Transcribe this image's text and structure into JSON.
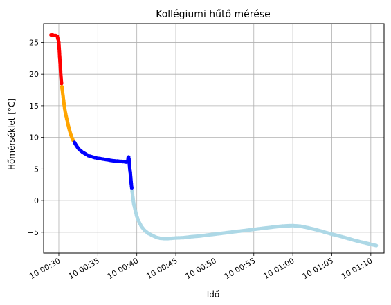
{
  "chart_data": {
    "type": "scatter",
    "title": "Kollégiumi hűtő mérése",
    "xlabel": "Idő",
    "ylabel": "Hőmérséklet [°C]",
    "x_unit": "minute after 00:00",
    "xlim": [
      28.05,
      71.7
    ],
    "ylim": [
      -8.3,
      28.0
    ],
    "x_ticks": [
      {
        "value": 30,
        "label": "10 00:30"
      },
      {
        "value": 35,
        "label": "10 00:35"
      },
      {
        "value": 40,
        "label": "10 00:40"
      },
      {
        "value": 45,
        "label": "10 00:45"
      },
      {
        "value": 50,
        "label": "10 00:50"
      },
      {
        "value": 55,
        "label": "10 00:55"
      },
      {
        "value": 60,
        "label": "10 01:00"
      },
      {
        "value": 65,
        "label": "10 01:05"
      },
      {
        "value": 70,
        "label": "10 01:10"
      }
    ],
    "y_ticks": [
      {
        "value": 25,
        "label": "25"
      },
      {
        "value": 20,
        "label": "20"
      },
      {
        "value": 15,
        "label": "15"
      },
      {
        "value": 10,
        "label": "10"
      },
      {
        "value": 5,
        "label": "5"
      },
      {
        "value": 0,
        "label": "0"
      },
      {
        "value": -5,
        "label": "−5"
      }
    ],
    "grid": true,
    "line_color": "#808080",
    "series": [
      {
        "color": "#ff0000",
        "points": [
          [
            29.0,
            26.2
          ],
          [
            29.2,
            26.2
          ],
          [
            29.4,
            26.1
          ],
          [
            29.6,
            26.1
          ],
          [
            29.8,
            26.0
          ],
          [
            29.9,
            25.5
          ],
          [
            30.0,
            25.0
          ],
          [
            30.05,
            24.0
          ],
          [
            30.1,
            23.0
          ],
          [
            30.15,
            22.0
          ],
          [
            30.2,
            21.0
          ],
          [
            30.25,
            20.0
          ],
          [
            30.3,
            19.2
          ],
          [
            30.35,
            18.5
          ]
        ]
      },
      {
        "color": "#ffa500",
        "points": [
          [
            30.4,
            18.0
          ],
          [
            30.5,
            17.0
          ],
          [
            30.6,
            16.0
          ],
          [
            30.7,
            15.0
          ],
          [
            30.8,
            14.2
          ],
          [
            30.95,
            13.3
          ],
          [
            31.1,
            12.5
          ],
          [
            31.25,
            11.7
          ],
          [
            31.4,
            11.0
          ],
          [
            31.55,
            10.4
          ],
          [
            31.7,
            9.9
          ],
          [
            31.85,
            9.5
          ]
        ]
      },
      {
        "color": "#0000ff",
        "points": [
          [
            32.0,
            9.2
          ],
          [
            32.3,
            8.6
          ],
          [
            32.6,
            8.1
          ],
          [
            33.0,
            7.7
          ],
          [
            33.4,
            7.4
          ],
          [
            33.8,
            7.1
          ],
          [
            34.2,
            6.95
          ],
          [
            34.6,
            6.8
          ],
          [
            35.0,
            6.7
          ],
          [
            35.5,
            6.6
          ],
          [
            36.0,
            6.5
          ],
          [
            36.5,
            6.4
          ],
          [
            37.0,
            6.3
          ],
          [
            37.5,
            6.25
          ],
          [
            38.0,
            6.2
          ],
          [
            38.4,
            6.15
          ],
          [
            38.7,
            6.1
          ],
          [
            38.85,
            6.3
          ],
          [
            38.9,
            6.8
          ],
          [
            38.95,
            6.9
          ],
          [
            39.0,
            6.6
          ],
          [
            39.05,
            5.8
          ],
          [
            39.1,
            5.0
          ],
          [
            39.15,
            4.6
          ],
          [
            39.3,
            2.5
          ],
          [
            39.35,
            2.0
          ]
        ]
      },
      {
        "color": "#add8e6",
        "points": [
          [
            39.4,
            1.5
          ],
          [
            39.5,
            0.5
          ],
          [
            39.6,
            -0.5
          ],
          [
            39.8,
            -1.5
          ],
          [
            40.0,
            -2.5
          ],
          [
            40.3,
            -3.4
          ],
          [
            40.6,
            -4.1
          ],
          [
            41.0,
            -4.7
          ],
          [
            41.5,
            -5.2
          ],
          [
            42.0,
            -5.5
          ],
          [
            42.5,
            -5.8
          ],
          [
            43.0,
            -5.95
          ],
          [
            43.5,
            -6.0
          ],
          [
            44.0,
            -6.0
          ],
          [
            45.0,
            -5.9
          ],
          [
            46.0,
            -5.85
          ],
          [
            47.0,
            -5.7
          ],
          [
            48.0,
            -5.6
          ],
          [
            49.0,
            -5.45
          ],
          [
            50.0,
            -5.3
          ],
          [
            51.0,
            -5.15
          ],
          [
            52.0,
            -5.0
          ],
          [
            53.0,
            -4.85
          ],
          [
            54.0,
            -4.7
          ],
          [
            55.0,
            -4.55
          ],
          [
            56.0,
            -4.4
          ],
          [
            57.0,
            -4.25
          ],
          [
            58.0,
            -4.1
          ],
          [
            59.0,
            -4.0
          ],
          [
            60.0,
            -3.95
          ],
          [
            61.0,
            -4.05
          ],
          [
            62.0,
            -4.3
          ],
          [
            63.0,
            -4.6
          ],
          [
            64.0,
            -4.95
          ],
          [
            65.0,
            -5.3
          ],
          [
            66.0,
            -5.6
          ],
          [
            67.0,
            -5.95
          ],
          [
            68.0,
            -6.3
          ],
          [
            69.0,
            -6.6
          ],
          [
            70.0,
            -6.9
          ],
          [
            70.7,
            -7.1
          ]
        ]
      }
    ]
  }
}
